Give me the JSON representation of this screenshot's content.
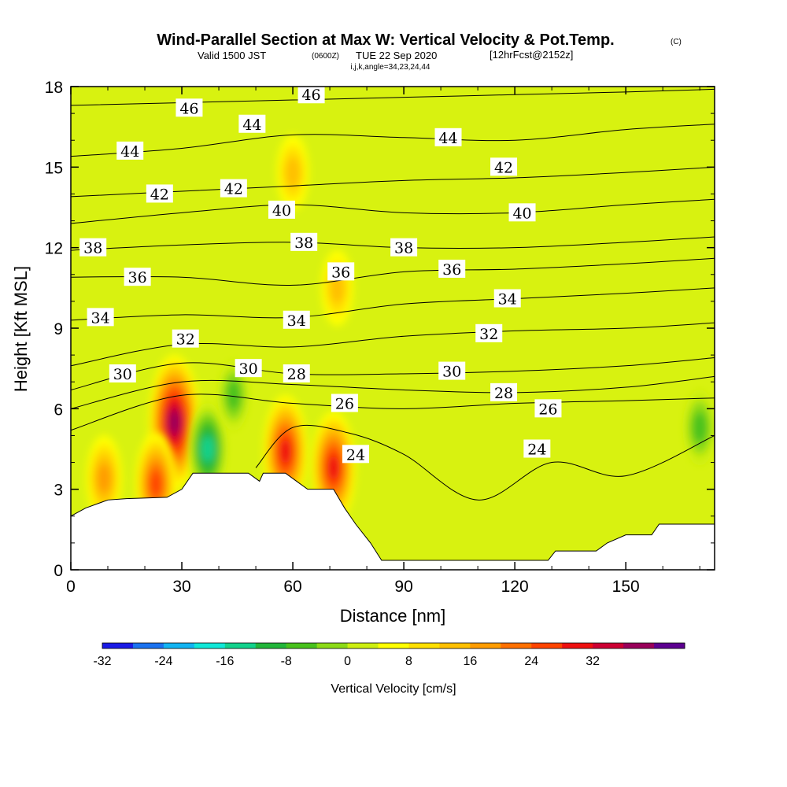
{
  "header": {
    "title": "Wind-Parallel Section at Max W: Vertical Velocity & Pot.Temp.",
    "copyright": "(C)",
    "valid_prefix": "Valid 1500 JST",
    "valid_utc": "(0600Z)",
    "valid_date": "TUE 22 Sep 2020",
    "forecast": "[12hrFcst@2152z]",
    "indices": "i,j,k,angle=34,23,24,44"
  },
  "chart_data": {
    "type": "heatmap",
    "xlabel": "Distance [nm]",
    "ylabel": "Height [Kft MSL]",
    "xlim": [
      0,
      174
    ],
    "ylim": [
      0,
      18
    ],
    "x_ticks": [
      0,
      30,
      60,
      90,
      120,
      150
    ],
    "y_ticks": [
      0,
      3,
      6,
      9,
      12,
      15,
      18
    ],
    "x_tick_labels": [
      "0",
      "30",
      "60",
      "90",
      "120",
      "150"
    ],
    "y_tick_labels": [
      "0",
      "3",
      "6",
      "9",
      "12",
      "15",
      "18"
    ],
    "colorbar": {
      "label": "Vertical Velocity [cm/s]",
      "tick_labels": [
        "-32",
        "-24",
        "-16",
        "-8",
        "0",
        "8",
        "16",
        "24",
        "32"
      ],
      "colors": [
        "#1a1ae6",
        "#1a72f0",
        "#12b4f2",
        "#10e8d8",
        "#12d28c",
        "#22b63a",
        "#48c21c",
        "#8cdb16",
        "#cdef10",
        "#ffff00",
        "#ffe000",
        "#ffc000",
        "#ff9c00",
        "#ff7000",
        "#ff4400",
        "#ee1010",
        "#cc0033",
        "#99005a",
        "#5c0090"
      ]
    },
    "terrain_height_profile": [
      {
        "x": 0,
        "y": 2.0
      },
      {
        "x": 4,
        "y": 2.3
      },
      {
        "x": 10,
        "y": 2.6
      },
      {
        "x": 15,
        "y": 2.65
      },
      {
        "x": 26,
        "y": 2.7
      },
      {
        "x": 30,
        "y": 3.0
      },
      {
        "x": 33,
        "y": 3.6
      },
      {
        "x": 48,
        "y": 3.6
      },
      {
        "x": 51,
        "y": 3.3
      },
      {
        "x": 52,
        "y": 3.6
      },
      {
        "x": 58,
        "y": 3.6
      },
      {
        "x": 61,
        "y": 3.3
      },
      {
        "x": 64,
        "y": 3.0
      },
      {
        "x": 71,
        "y": 3.0
      },
      {
        "x": 74,
        "y": 2.3
      },
      {
        "x": 77,
        "y": 1.7
      },
      {
        "x": 81,
        "y": 1.0
      },
      {
        "x": 84,
        "y": 0.35
      },
      {
        "x": 129,
        "y": 0.35
      },
      {
        "x": 131,
        "y": 0.7
      },
      {
        "x": 142,
        "y": 0.7
      },
      {
        "x": 145,
        "y": 1.0
      },
      {
        "x": 150,
        "y": 1.3
      },
      {
        "x": 157,
        "y": 1.3
      },
      {
        "x": 159,
        "y": 1.7
      },
      {
        "x": 174,
        "y": 1.7
      }
    ],
    "vertical_velocity_features_cm_s": [
      {
        "x": 28,
        "y": 5.5,
        "peak": 34
      },
      {
        "x": 23,
        "y": 3.2,
        "peak": 22
      },
      {
        "x": 9,
        "y": 3.4,
        "peak": 16
      },
      {
        "x": 58,
        "y": 4.4,
        "peak": 26
      },
      {
        "x": 71,
        "y": 3.8,
        "peak": 26
      },
      {
        "x": 37,
        "y": 4.5,
        "peak": -18
      },
      {
        "x": 170,
        "y": 5.3,
        "peak": -12
      },
      {
        "x": 44,
        "y": 6.5,
        "peak": -10
      },
      {
        "x": 60,
        "y": 14.8,
        "peak": 12
      },
      {
        "x": 72,
        "y": 10.5,
        "peak": 12
      }
    ],
    "series": [
      {
        "name": "46",
        "values": [
          {
            "x": 0,
            "y": 17.3
          },
          {
            "x": 30,
            "y": 17.4
          },
          {
            "x": 60,
            "y": 17.5
          },
          {
            "x": 90,
            "y": 17.6
          },
          {
            "x": 120,
            "y": 17.7
          },
          {
            "x": 150,
            "y": 17.8
          },
          {
            "x": 174,
            "y": 17.9
          }
        ]
      },
      {
        "x_note": "",
        "name": "44",
        "values": [
          {
            "x": 0,
            "y": 15.4
          },
          {
            "x": 30,
            "y": 15.7
          },
          {
            "x": 60,
            "y": 16.2
          },
          {
            "x": 90,
            "y": 16.1
          },
          {
            "x": 120,
            "y": 16.0
          },
          {
            "x": 150,
            "y": 16.4
          },
          {
            "x": 174,
            "y": 16.6
          }
        ]
      },
      {
        "name": "42",
        "values": [
          {
            "x": 0,
            "y": 13.9
          },
          {
            "x": 30,
            "y": 14.1
          },
          {
            "x": 60,
            "y": 14.3
          },
          {
            "x": 90,
            "y": 14.5
          },
          {
            "x": 120,
            "y": 14.6
          },
          {
            "x": 150,
            "y": 14.8
          },
          {
            "x": 174,
            "y": 15.0
          }
        ]
      },
      {
        "name": "40",
        "values": [
          {
            "x": 0,
            "y": 12.9
          },
          {
            "x": 30,
            "y": 13.3
          },
          {
            "x": 60,
            "y": 13.6
          },
          {
            "x": 90,
            "y": 13.3
          },
          {
            "x": 120,
            "y": 13.3
          },
          {
            "x": 150,
            "y": 13.6
          },
          {
            "x": 174,
            "y": 13.8
          }
        ]
      },
      {
        "name": "38",
        "values": [
          {
            "x": 0,
            "y": 11.9
          },
          {
            "x": 30,
            "y": 12.1
          },
          {
            "x": 60,
            "y": 12.2
          },
          {
            "x": 90,
            "y": 12.0
          },
          {
            "x": 120,
            "y": 12.0
          },
          {
            "x": 150,
            "y": 12.2
          },
          {
            "x": 174,
            "y": 12.4
          }
        ]
      },
      {
        "name": "36",
        "values": [
          {
            "x": 0,
            "y": 10.9
          },
          {
            "x": 30,
            "y": 10.9
          },
          {
            "x": 60,
            "y": 10.6
          },
          {
            "x": 90,
            "y": 11.1
          },
          {
            "x": 120,
            "y": 11.2
          },
          {
            "x": 150,
            "y": 11.4
          },
          {
            "x": 174,
            "y": 11.6
          }
        ]
      },
      {
        "name": "34",
        "values": [
          {
            "x": 0,
            "y": 9.3
          },
          {
            "x": 30,
            "y": 9.5
          },
          {
            "x": 60,
            "y": 9.4
          },
          {
            "x": 90,
            "y": 9.9
          },
          {
            "x": 120,
            "y": 10.1
          },
          {
            "x": 150,
            "y": 10.3
          },
          {
            "x": 174,
            "y": 10.5
          }
        ]
      },
      {
        "name": "32",
        "values": [
          {
            "x": 0,
            "y": 7.6
          },
          {
            "x": 30,
            "y": 8.4
          },
          {
            "x": 60,
            "y": 8.3
          },
          {
            "x": 90,
            "y": 8.7
          },
          {
            "x": 120,
            "y": 8.9
          },
          {
            "x": 150,
            "y": 9.0
          },
          {
            "x": 174,
            "y": 9.2
          }
        ]
      },
      {
        "name": "30",
        "values": [
          {
            "x": 0,
            "y": 6.7
          },
          {
            "x": 30,
            "y": 7.7
          },
          {
            "x": 60,
            "y": 7.3
          },
          {
            "x": 90,
            "y": 7.3
          },
          {
            "x": 120,
            "y": 7.4
          },
          {
            "x": 150,
            "y": 7.6
          },
          {
            "x": 174,
            "y": 7.9
          }
        ]
      },
      {
        "name": "28",
        "values": [
          {
            "x": 0,
            "y": 6.0
          },
          {
            "x": 30,
            "y": 7.0
          },
          {
            "x": 60,
            "y": 6.9
          },
          {
            "x": 90,
            "y": 6.7
          },
          {
            "x": 120,
            "y": 6.6
          },
          {
            "x": 150,
            "y": 6.8
          },
          {
            "x": 174,
            "y": 7.2
          }
        ]
      },
      {
        "name": "26",
        "values": [
          {
            "x": 0,
            "y": 5.2
          },
          {
            "x": 30,
            "y": 6.5
          },
          {
            "x": 60,
            "y": 6.2
          },
          {
            "x": 90,
            "y": 6.0
          },
          {
            "x": 120,
            "y": 6.2
          },
          {
            "x": 150,
            "y": 6.3
          },
          {
            "x": 174,
            "y": 6.4
          }
        ]
      },
      {
        "name": "24",
        "values": [
          {
            "x": 50,
            "y": 3.8
          },
          {
            "x": 60,
            "y": 5.3
          },
          {
            "x": 75,
            "y": 5.1
          },
          {
            "x": 90,
            "y": 4.3
          },
          {
            "x": 110,
            "y": 2.6
          },
          {
            "x": 130,
            "y": 4.0
          },
          {
            "x": 150,
            "y": 3.5
          },
          {
            "x": 174,
            "y": 5.0
          }
        ]
      }
    ],
    "contour_labels": [
      "46",
      "46",
      "44",
      "44",
      "44",
      "42",
      "42",
      "42",
      "40",
      "40",
      "38",
      "38",
      "38",
      "36",
      "36",
      "36",
      "34",
      "34",
      "34",
      "32",
      "32",
      "30",
      "30",
      "30",
      "28",
      "28",
      "26",
      "26",
      "24",
      "24"
    ]
  }
}
